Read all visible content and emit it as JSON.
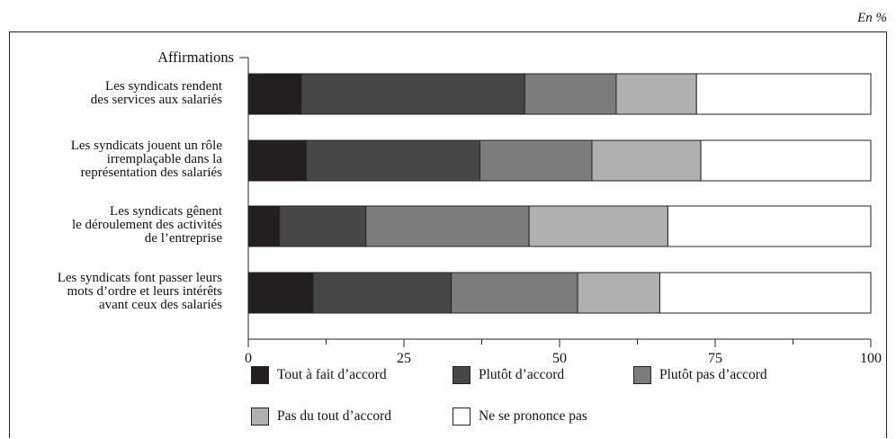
{
  "unit_label": "En %",
  "chart_data": {
    "type": "bar",
    "orientation": "horizontal",
    "stacked": true,
    "y_axis_title": "Affirmations",
    "categories": [
      [
        "Les syndicats rendent",
        "des services aux salariés"
      ],
      [
        "Les syndicats jouent un rôle",
        "irremplaçable dans la",
        "représentation des salariés"
      ],
      [
        "Les syndicats gênent",
        "le déroulement des activités",
        "de l’entreprise"
      ],
      [
        "Les syndicats font passer leurs",
        "mots d’ordre et leurs intérêts",
        "avant ceux des salariés"
      ]
    ],
    "series": [
      {
        "name": "Tout à fait d’accord",
        "color": "#231f20",
        "values": [
          8.5,
          9.3,
          5.0,
          10.4
        ]
      },
      {
        "name": "Plutôt d’accord",
        "color": "#474747",
        "values": [
          35.9,
          27.9,
          13.9,
          22.2
        ]
      },
      {
        "name": "Plutôt pas d’accord",
        "color": "#7c7c7c",
        "values": [
          14.7,
          18.0,
          26.2,
          20.3
        ]
      },
      {
        "name": "Pas du tout d’accord",
        "color": "#b0b0b0",
        "values": [
          12.9,
          17.5,
          22.3,
          13.2
        ]
      },
      {
        "name": "Ne se prononce pas",
        "color": "#ffffff",
        "values": [
          28.0,
          27.3,
          32.6,
          33.9
        ]
      }
    ],
    "xlim": [
      0,
      100
    ],
    "xticks": [
      0,
      25,
      50,
      75,
      100
    ],
    "legend_position": "bottom"
  }
}
